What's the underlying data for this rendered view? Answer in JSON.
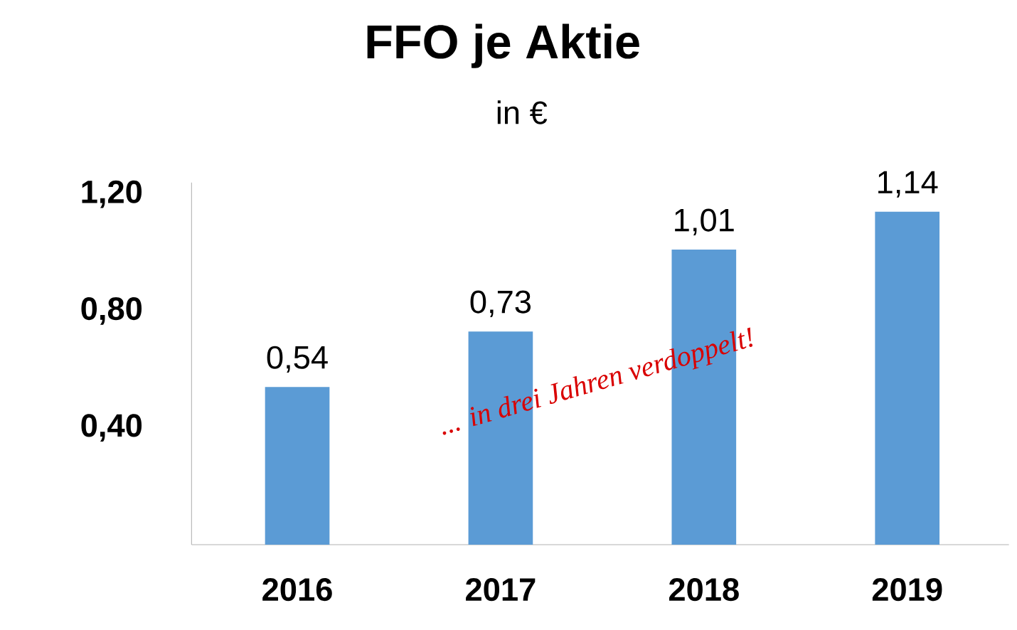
{
  "chart_data": {
    "type": "bar",
    "title": "FFO je Aktie",
    "subtitle": "in €",
    "categories": [
      "2016",
      "2017",
      "2018",
      "2019"
    ],
    "values": [
      0.54,
      0.73,
      1.01,
      1.14
    ],
    "value_labels": [
      "0,54",
      "0,73",
      "1,01",
      "1,14"
    ],
    "color": "#5b9bd5",
    "ylim": [
      0,
      1.24
    ],
    "yticks": [
      {
        "value": 0.4,
        "label": "0,40"
      },
      {
        "value": 0.8,
        "label": "0,80"
      },
      {
        "value": 1.2,
        "label": "1,20"
      }
    ],
    "annotations": [
      "... in drei Jahren verdoppelt!"
    ]
  }
}
